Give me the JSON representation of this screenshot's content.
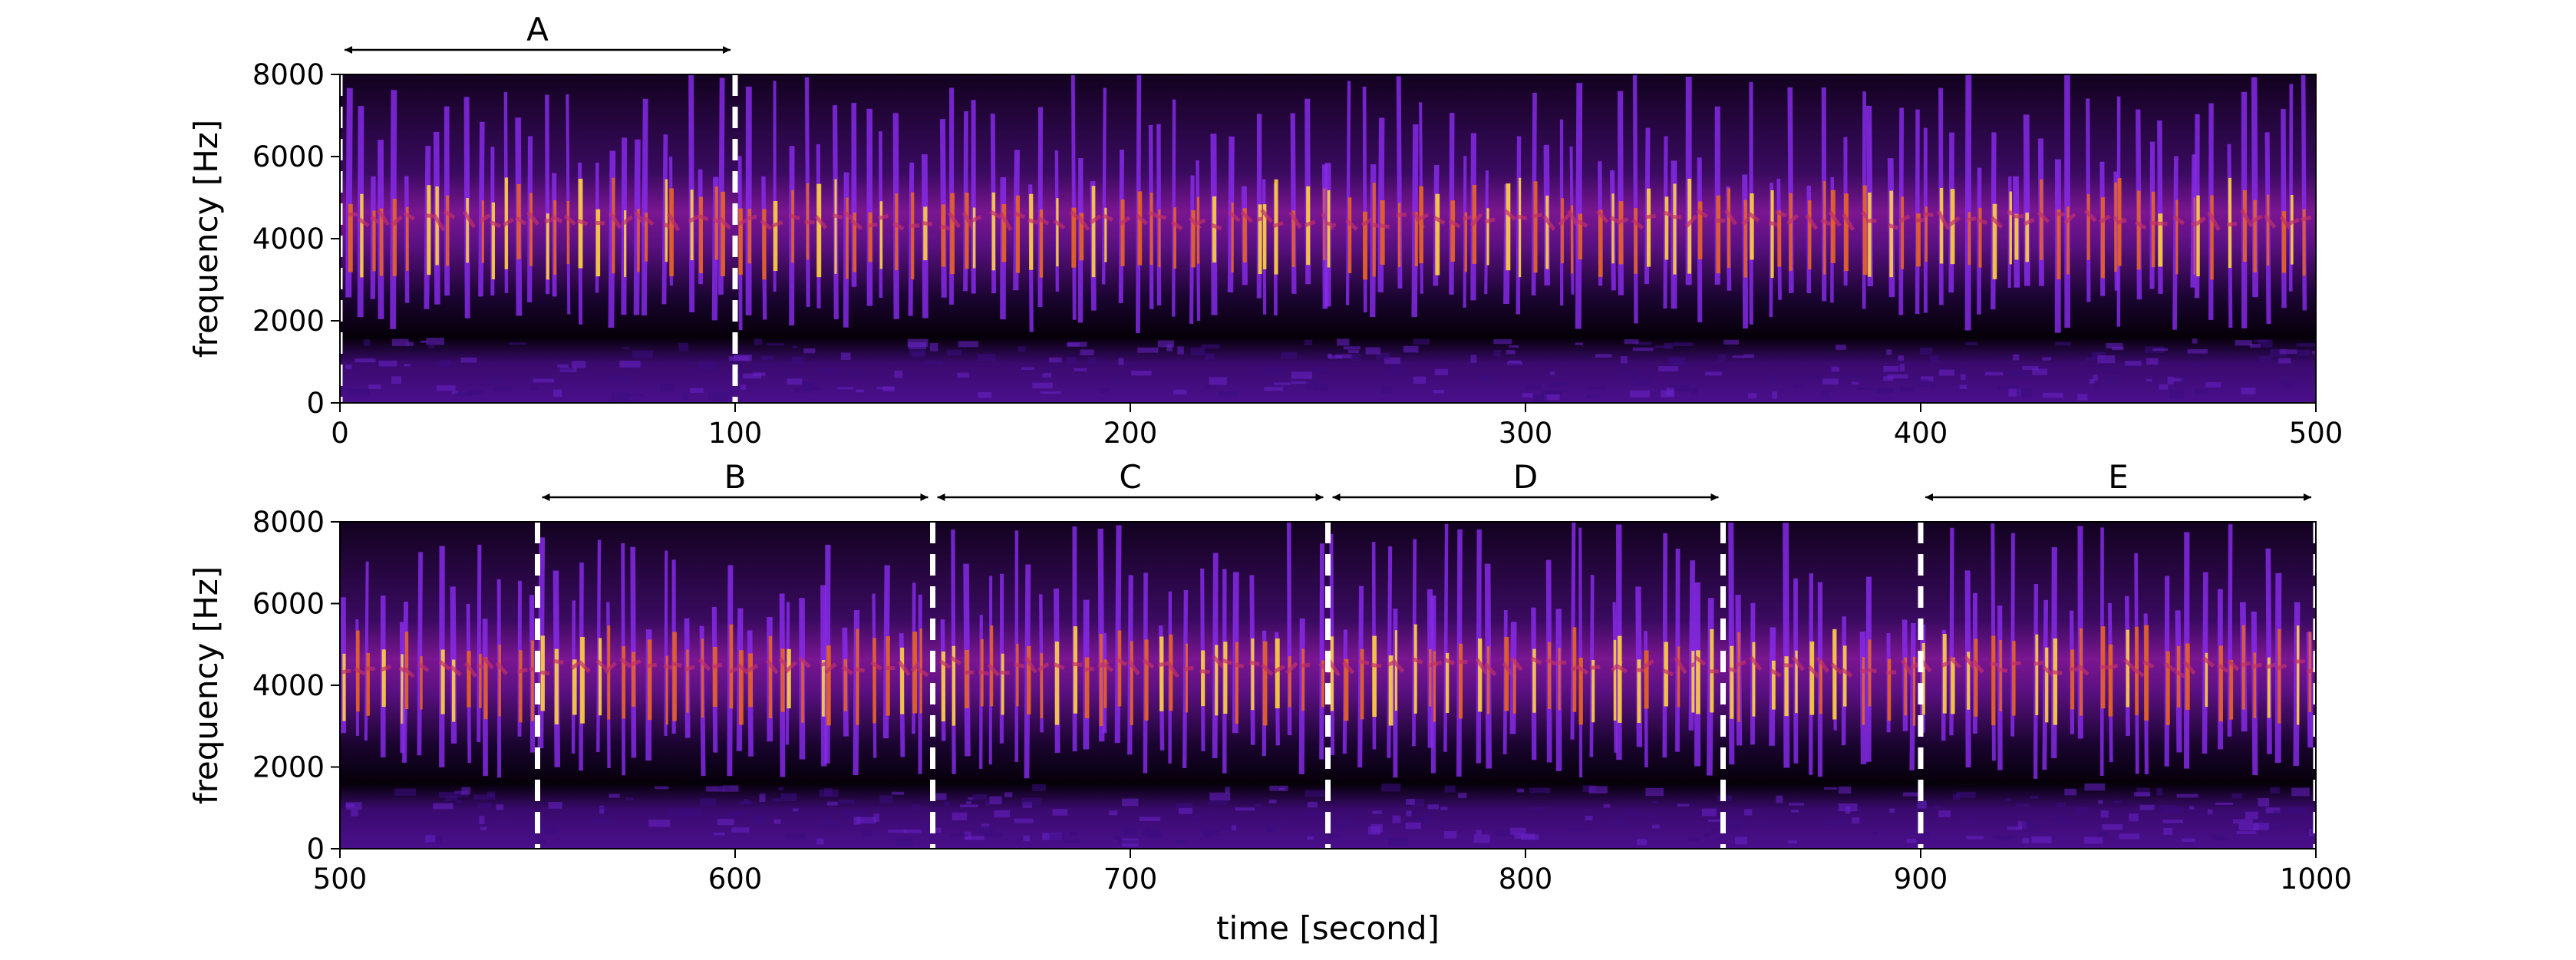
{
  "chart_data": [
    {
      "type": "heatmap",
      "title": "",
      "xlabel": "",
      "ylabel": "frequency [Hz]",
      "xlim": [
        0,
        500
      ],
      "ylim": [
        0,
        8000
      ],
      "x_ticks": [
        "0",
        "100",
        "200",
        "300",
        "400",
        "500"
      ],
      "x_tick_values": [
        0,
        100,
        200,
        300,
        400,
        500
      ],
      "y_ticks": [
        "0",
        "2000",
        "4000",
        "6000",
        "8000"
      ],
      "y_tick_values": [
        0,
        2000,
        4000,
        6000,
        8000
      ],
      "colormap": "inferno-like (black-purple-red-orange-yellow)",
      "segment_boundaries": [
        0,
        100
      ],
      "segments": [
        {
          "label": "A",
          "start": 0,
          "end": 100
        }
      ]
    },
    {
      "type": "heatmap",
      "title": "",
      "xlabel": "time [second]",
      "ylabel": "frequency [Hz]",
      "xlim": [
        500,
        1000
      ],
      "ylim": [
        0,
        8000
      ],
      "x_ticks": [
        "500",
        "600",
        "700",
        "800",
        "900",
        "1000"
      ],
      "x_tick_values": [
        500,
        600,
        700,
        800,
        900,
        1000
      ],
      "y_ticks": [
        "0",
        "2000",
        "4000",
        "6000",
        "8000"
      ],
      "y_tick_values": [
        0,
        2000,
        4000,
        6000,
        8000
      ],
      "colormap": "inferno-like (black-purple-red-orange-yellow)",
      "segment_boundaries": [
        550,
        650,
        750,
        850,
        900,
        1000
      ],
      "segments": [
        {
          "label": "B",
          "start": 550,
          "end": 650
        },
        {
          "label": "C",
          "start": 650,
          "end": 750
        },
        {
          "label": "D",
          "start": 750,
          "end": 850
        },
        {
          "label": "E",
          "start": 900,
          "end": 1000
        }
      ]
    }
  ]
}
